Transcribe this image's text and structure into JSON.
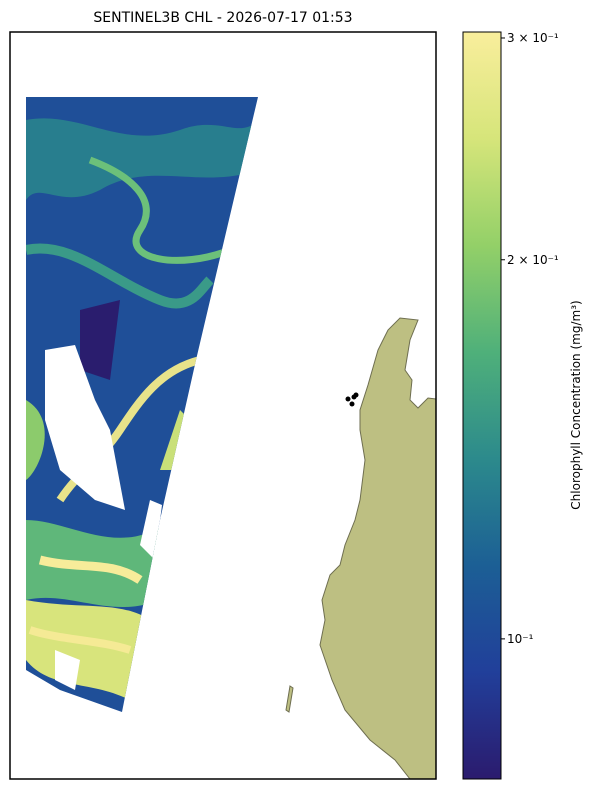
{
  "chart_data": {
    "type": "map",
    "title": "SENTINEL3B CHL - 2026-07-17 01:53",
    "colorbar": {
      "label": "Chlorophyll Concentration (mg/m³)",
      "scale": "log",
      "lim": [
        0.0774,
        0.3033
      ],
      "ticks": [
        {
          "value": 0.1,
          "label": "10⁻¹"
        },
        {
          "value": 0.2,
          "label": "2 × 10⁻¹"
        },
        {
          "value": 0.3,
          "label": "3 × 10⁻¹"
        }
      ],
      "colors": [
        "#2b1b6e",
        "#213f9a",
        "#1c5f95",
        "#2c8a8c",
        "#4fb07a",
        "#93d068",
        "#d6e57a",
        "#f9ee9c"
      ]
    }
  }
}
